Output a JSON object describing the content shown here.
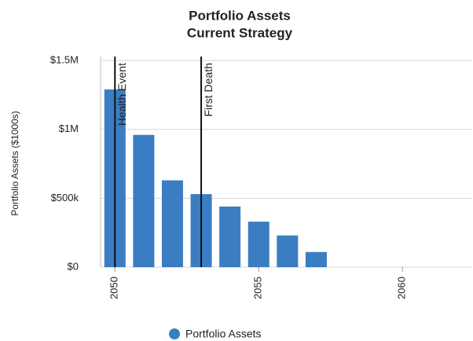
{
  "chart_data": {
    "type": "bar",
    "title": "Portfolio Assets",
    "subtitle": "Current Strategy",
    "y_label": "Portfolio Assets ($1000s)",
    "x": [
      2050,
      2051,
      2052,
      2053,
      2054,
      2055,
      2056,
      2057
    ],
    "series": [
      {
        "name": "Portfolio Assets",
        "color": "#3a7dc2",
        "values": [
          1290000,
          960000,
          630000,
          530000,
          440000,
          330000,
          230000,
          110000
        ]
      }
    ],
    "xlim": [
      2049.5,
      2062.4
    ],
    "xticks": [
      2050,
      2055,
      2060
    ],
    "ylim": [
      0,
      1500000
    ],
    "yticks": [
      {
        "value": 0,
        "label": "$0"
      },
      {
        "value": 500000,
        "label": "$500k"
      },
      {
        "value": 1000000,
        "label": "$1M"
      },
      {
        "value": 1500000,
        "label": "$1.5M"
      }
    ],
    "grid": true,
    "annotations": [
      {
        "label": "Health Event",
        "x": 2050
      },
      {
        "label": "First Death",
        "x": 2053
      }
    ],
    "legend": "bottom"
  }
}
